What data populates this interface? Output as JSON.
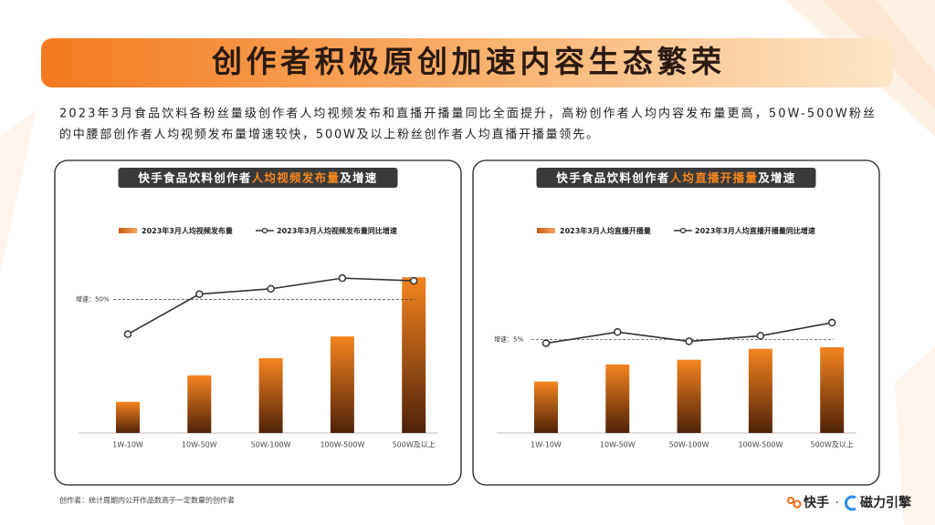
{
  "title": "创作者积极原创加速内容生态繁荣",
  "description": [
    "2023年3月食品饮料各粉丝量级创作者人均视频发布和直播开播量同比全面提升，高粉创作者人均内容发布量更高，50W-500W粉丝",
    "的中腰部创作者人均视频发布量增速较快，500W及以上粉丝创作者人均直播开播量领先。"
  ],
  "footnote": "创作者：统计周期内公开作品数高于一定数量的创作者",
  "brand": [
    "快手",
    "·",
    "磁力引擎"
  ],
  "chart_data": [
    {
      "type": "combo",
      "title": [
        "快手食品饮料创作者",
        "人均视频发布量",
        "及增速"
      ],
      "categories": [
        "1W-10W",
        "10W-50W",
        "50W-100W",
        "100W-500W",
        "500W及以上"
      ],
      "series": [
        {
          "name": "2023年3月人均视频发布量",
          "type": "bar",
          "color": "#f5841f",
          "values": [
            20,
            37,
            48,
            62,
            100
          ]
        },
        {
          "name": "2023年3月人均视频发布量同比增速",
          "type": "line",
          "axis": "y2",
          "color": "#333333",
          "values": [
            37,
            52,
            54,
            58,
            57
          ]
        }
      ],
      "ylim": [
        0,
        120
      ],
      "y2lim": [
        0,
        70
      ],
      "reference": {
        "value": 50,
        "label": "增速：50%"
      }
    },
    {
      "type": "combo",
      "title": [
        "快手食品饮料创作者",
        "人均直播开播量",
        "及增速"
      ],
      "categories": [
        "1W-10W",
        "10W-50W",
        "50W-100W",
        "100W-500W",
        "500W及以上"
      ],
      "series": [
        {
          "name": "2023年3月人均直播开播量",
          "type": "bar",
          "color": "#f5841f",
          "values": [
            33,
            44,
            47,
            54,
            55
          ]
        },
        {
          "name": "2023年3月人均直播开播量同比增速",
          "type": "line",
          "axis": "y2",
          "color": "#333333",
          "values": [
            4.8,
            5.4,
            4.9,
            5.2,
            5.9
          ]
        }
      ],
      "ylim": [
        0,
        120
      ],
      "y2lim": [
        0,
        10
      ],
      "reference": {
        "value": 5,
        "label": "增速：5%"
      }
    }
  ]
}
